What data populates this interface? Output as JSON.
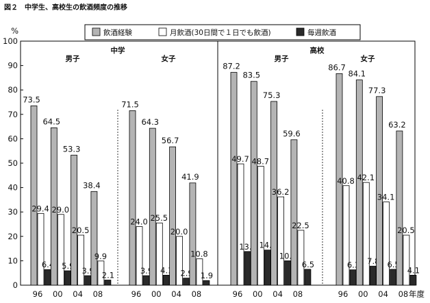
{
  "figure_title": "図２　中学生、高校生の飲酒頻度の推移",
  "chart_data": {
    "type": "bar",
    "title": "中学生、高校生の飲酒頻度の推移",
    "ylabel": "%",
    "xlabel": "年度",
    "ylim": [
      0,
      100
    ],
    "yticks": [
      0,
      10,
      20,
      30,
      40,
      50,
      60,
      70,
      80,
      90,
      100
    ],
    "legend": [
      "飲酒経験",
      "月飲酒(30日間で１日でも飲酒)",
      "毎週飲酒"
    ],
    "panels": [
      {
        "school": "中学",
        "groups": [
          {
            "label": "男子",
            "years": [
              "96",
              "00",
              "04",
              "08"
            ],
            "series": [
              {
                "name": "飲酒経験",
                "values": [
                  73.5,
                  64.5,
                  53.3,
                  38.4
                ]
              },
              {
                "name": "月飲酒(30日間で１日でも飲酒)",
                "values": [
                  29.4,
                  29.0,
                  20.5,
                  9.9
                ]
              },
              {
                "name": "毎週飲酒",
                "values": [
                  6.4,
                  5.9,
                  3.9,
                  2.1
                ]
              }
            ]
          },
          {
            "label": "女子",
            "years": [
              "96",
              "00",
              "04",
              "08"
            ],
            "series": [
              {
                "name": "飲酒経験",
                "values": [
                  71.5,
                  64.3,
                  56.7,
                  41.9
                ]
              },
              {
                "name": "月飲酒(30日間で１日でも飲酒)",
                "values": [
                  24.0,
                  25.5,
                  20.0,
                  10.8
                ]
              },
              {
                "name": "毎週飲酒",
                "values": [
                  3.9,
                  4.1,
                  2.9,
                  1.9
                ]
              }
            ]
          }
        ]
      },
      {
        "school": "高校",
        "groups": [
          {
            "label": "男子",
            "years": [
              "96",
              "00",
              "04",
              "08"
            ],
            "series": [
              {
                "name": "飲酒経験",
                "values": [
                  87.2,
                  83.5,
                  75.3,
                  59.6
                ]
              },
              {
                "name": "月飲酒(30日間で１日でも飲酒)",
                "values": [
                  49.7,
                  48.7,
                  36.2,
                  22.5
                ]
              },
              {
                "name": "毎週飲酒",
                "values": [
                  13.8,
                  14.4,
                  10.0,
                  6.5
                ]
              }
            ]
          },
          {
            "label": "女子",
            "years": [
              "96",
              "00",
              "04",
              "08"
            ],
            "series": [
              {
                "name": "飲酒経験",
                "values": [
                  86.7,
                  84.1,
                  77.3,
                  63.2
                ]
              },
              {
                "name": "月飲酒(30日間で１日でも飲酒)",
                "values": [
                  40.8,
                  42.1,
                  34.1,
                  20.5
                ]
              },
              {
                "name": "毎週飲酒",
                "values": [
                  6.3,
                  7.8,
                  6.5,
                  4.1
                ]
              }
            ]
          }
        ]
      }
    ],
    "colors": {
      "飲酒経験": "#b4b4b4",
      "月飲酒(30日間で１日でも飲酒)": "#ffffff",
      "毎週飲酒": "#2a2a2a"
    }
  }
}
